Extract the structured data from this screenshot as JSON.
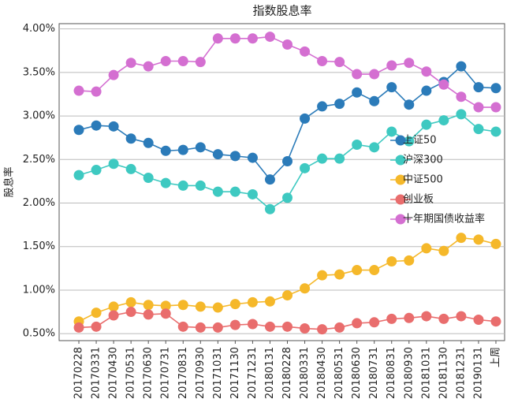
{
  "chart_data": {
    "type": "line",
    "title": "指数股息率",
    "y_label": "股息率",
    "categories": [
      "20170228",
      "20170331",
      "20170430",
      "20170531",
      "20170630",
      "20170731",
      "20170831",
      "20170930",
      "20171031",
      "20171130",
      "20171231",
      "20180131",
      "20180228",
      "20180331",
      "20180430",
      "20180531",
      "20180630",
      "20180731",
      "20180831",
      "20180930",
      "20181031",
      "20181130",
      "20181231",
      "20190131",
      "上周"
    ],
    "series": [
      {
        "name": "上证50",
        "color": "#2b7bb9",
        "values": [
          2.84,
          2.89,
          2.88,
          2.74,
          2.69,
          2.6,
          2.61,
          2.64,
          2.56,
          2.54,
          2.52,
          2.27,
          2.48,
          2.97,
          3.11,
          3.14,
          3.27,
          3.17,
          3.33,
          3.13,
          3.29,
          3.39,
          3.57,
          3.33,
          3.32
        ]
      },
      {
        "name": "沪深300",
        "color": "#3ec9c1",
        "values": [
          2.32,
          2.38,
          2.45,
          2.39,
          2.29,
          2.23,
          2.2,
          2.2,
          2.13,
          2.13,
          2.1,
          1.93,
          2.06,
          2.4,
          2.51,
          2.51,
          2.67,
          2.64,
          2.82,
          2.71,
          2.9,
          2.95,
          3.02,
          2.85,
          2.82
        ]
      },
      {
        "name": "中证500",
        "color": "#f5b82a",
        "values": [
          0.64,
          0.74,
          0.81,
          0.86,
          0.83,
          0.82,
          0.83,
          0.81,
          0.8,
          0.84,
          0.86,
          0.87,
          0.94,
          1.02,
          1.17,
          1.18,
          1.23,
          1.23,
          1.33,
          1.34,
          1.48,
          1.45,
          1.6,
          1.58,
          1.53
        ]
      },
      {
        "name": "创业板",
        "color": "#e96d6d",
        "values": [
          0.57,
          0.58,
          0.71,
          0.75,
          0.72,
          0.73,
          0.58,
          0.57,
          0.57,
          0.6,
          0.61,
          0.58,
          0.58,
          0.56,
          0.55,
          0.57,
          0.62,
          0.63,
          0.67,
          0.68,
          0.7,
          0.67,
          0.7,
          0.66,
          0.64
        ]
      },
      {
        "name": "十年期国债收益率",
        "color": "#d46fd1",
        "values": [
          3.29,
          3.28,
          3.47,
          3.61,
          3.57,
          3.63,
          3.63,
          3.62,
          3.89,
          3.89,
          3.89,
          3.91,
          3.82,
          3.74,
          3.63,
          3.62,
          3.48,
          3.48,
          3.58,
          3.61,
          3.51,
          3.36,
          3.22,
          3.1,
          3.1
        ]
      }
    ],
    "ylim": [
      0.42,
      4.06
    ],
    "yticks": [
      {
        "value": 0.5,
        "label": "0.50%"
      },
      {
        "value": 1.0,
        "label": "1.00%"
      },
      {
        "value": 1.5,
        "label": "1.50%"
      },
      {
        "value": 2.0,
        "label": "2.00%"
      },
      {
        "value": 2.5,
        "label": "2.50%"
      },
      {
        "value": 3.0,
        "label": "3.00%"
      },
      {
        "value": 3.5,
        "label": "3.50%"
      },
      {
        "value": 4.0,
        "label": "4.00%"
      }
    ],
    "grid": true,
    "legend": "right"
  }
}
